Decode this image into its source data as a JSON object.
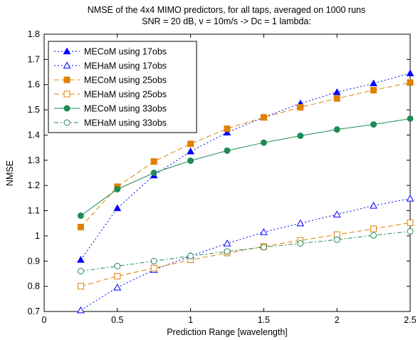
{
  "chart_data": {
    "type": "line",
    "title": "NMSE of the 4x4 MIMO predictors, for all taps, averaged on 1000 runs",
    "subtitle": "SNR = 20 dB, v = 10m/s -> Dc = 1 lambda:",
    "xlabel": "Prediction Range [wavelength]",
    "ylabel": "NMSE",
    "xlim": [
      0,
      2.5
    ],
    "ylim": [
      0.7,
      1.8
    ],
    "xticks": [
      0,
      0.5,
      1,
      1.5,
      2,
      2.5
    ],
    "xtick_labels": [
      "0",
      "0.5",
      "1",
      "1.5",
      "2",
      "2.5"
    ],
    "yticks": [
      0.7,
      0.8,
      0.9,
      1.0,
      1.1,
      1.2,
      1.3,
      1.4,
      1.5,
      1.6,
      1.7,
      1.8
    ],
    "ytick_labels": [
      "0.7",
      "0.8",
      "0.9",
      "1",
      "1.1",
      "1.2",
      "1.3",
      "1.4",
      "1.5",
      "1.6",
      "1.7",
      "1.8"
    ],
    "grid": false,
    "legend_position": "top-left",
    "x": [
      0.25,
      0.5,
      0.75,
      1.0,
      1.25,
      1.5,
      1.75,
      2.0,
      2.25,
      2.5
    ],
    "series": [
      {
        "name": "MECoM using 17obs",
        "color": "#0000ff",
        "dash": "dotted",
        "marker": "triangle",
        "filled": true,
        "values": [
          0.905,
          1.11,
          1.24,
          1.335,
          1.41,
          1.47,
          1.525,
          1.57,
          1.605,
          1.645
        ]
      },
      {
        "name": "MEHaM using 17obs",
        "color": "#0000ff",
        "dash": "dotted",
        "marker": "triangle",
        "filled": false,
        "values": [
          0.705,
          0.795,
          0.865,
          0.92,
          0.97,
          1.015,
          1.05,
          1.085,
          1.12,
          1.148
        ]
      },
      {
        "name": "MECoM using 25obs",
        "color": "#e08000",
        "dash": "dashed",
        "marker": "square",
        "filled": true,
        "values": [
          1.035,
          1.195,
          1.295,
          1.365,
          1.425,
          1.47,
          1.51,
          1.545,
          1.578,
          1.608
        ]
      },
      {
        "name": "MEHaM using 25obs",
        "color": "#e08000",
        "dash": "dashed",
        "marker": "square",
        "filled": false,
        "values": [
          0.8,
          0.84,
          0.872,
          0.905,
          0.932,
          0.958,
          0.982,
          1.005,
          1.028,
          1.052
        ]
      },
      {
        "name": "MECoM using 33obs",
        "color": "#1f8a55",
        "dash": "solid",
        "marker": "circle",
        "filled": true,
        "values": [
          1.08,
          1.185,
          1.25,
          1.298,
          1.338,
          1.37,
          1.397,
          1.422,
          1.442,
          1.465
        ]
      },
      {
        "name": "MEHaM using 33obs",
        "color": "#1f8a55",
        "dash": "dashdot",
        "marker": "circle",
        "filled": false,
        "values": [
          0.86,
          0.88,
          0.9,
          0.92,
          0.938,
          0.955,
          0.97,
          0.985,
          1.002,
          1.018
        ]
      }
    ]
  }
}
